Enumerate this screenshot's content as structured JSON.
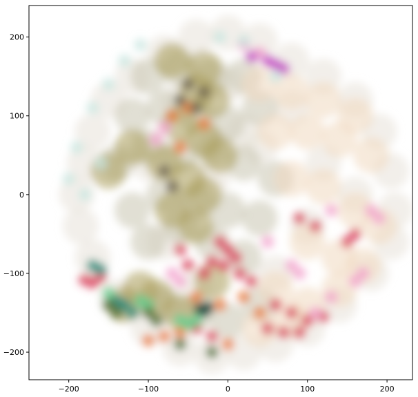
{
  "chart_data": {
    "type": "scatter",
    "title": "",
    "xlabel": "",
    "ylabel": "",
    "xlim": [
      -250,
      232
    ],
    "ylim": [
      -235,
      240
    ],
    "grid": false,
    "legend": "none",
    "x_ticks": [
      {
        "value": -200,
        "label": "−200"
      },
      {
        "value": -100,
        "label": "−100"
      },
      {
        "value": 0,
        "label": "0"
      },
      {
        "value": 100,
        "label": "100"
      },
      {
        "value": 200,
        "label": "200"
      }
    ],
    "y_ticks": [
      {
        "value": 200,
        "label": "200"
      },
      {
        "value": 100,
        "label": "100"
      },
      {
        "value": 0,
        "label": "0"
      },
      {
        "value": -100,
        "label": "−100"
      },
      {
        "value": -200,
        "label": "−200"
      }
    ],
    "series": [
      {
        "color": "#e8e2d8",
        "points": [
          [
            -80,
            180
          ],
          [
            -40,
            200
          ],
          [
            0,
            205
          ],
          [
            40,
            195
          ],
          [
            80,
            170
          ],
          [
            -120,
            150
          ],
          [
            -150,
            120
          ],
          [
            -170,
            80
          ],
          [
            -180,
            40
          ],
          [
            -190,
            0
          ],
          [
            -185,
            -40
          ],
          [
            -170,
            -80
          ],
          [
            -140,
            -130
          ],
          [
            -100,
            -170
          ],
          [
            -60,
            -195
          ],
          [
            -20,
            -205
          ],
          [
            20,
            -200
          ],
          [
            60,
            -190
          ],
          [
            100,
            -170
          ],
          [
            140,
            -140
          ],
          [
            180,
            -100
          ],
          [
            205,
            -60
          ],
          [
            210,
            -20
          ],
          [
            205,
            30
          ],
          [
            190,
            80
          ],
          [
            160,
            120
          ],
          [
            120,
            150
          ],
          [
            80,
            110
          ],
          [
            40,
            60
          ],
          [
            120,
            40
          ],
          [
            160,
            0
          ],
          [
            100,
            -40
          ],
          [
            60,
            -100
          ],
          [
            -40,
            -120
          ],
          [
            -80,
            -60
          ],
          [
            -100,
            40
          ],
          [
            -60,
            120
          ],
          [
            0,
            140
          ],
          [
            20,
            80
          ],
          [
            -20,
            20
          ]
        ]
      },
      {
        "color": "#c8c4b0",
        "points": [
          [
            -100,
            150
          ],
          [
            -60,
            160
          ],
          [
            -20,
            150
          ],
          [
            20,
            150
          ],
          [
            -120,
            100
          ],
          [
            -80,
            110
          ],
          [
            -40,
            100
          ],
          [
            0,
            90
          ],
          [
            40,
            110
          ],
          [
            -140,
            40
          ],
          [
            -100,
            60
          ],
          [
            -60,
            50
          ],
          [
            -20,
            60
          ],
          [
            20,
            40
          ],
          [
            60,
            20
          ],
          [
            -120,
            -20
          ],
          [
            -80,
            0
          ],
          [
            -40,
            -10
          ],
          [
            0,
            -20
          ],
          [
            40,
            -30
          ],
          [
            -100,
            -60
          ],
          [
            -60,
            -40
          ],
          [
            -20,
            -60
          ],
          [
            20,
            -80
          ],
          [
            -80,
            -140
          ],
          [
            -40,
            -150
          ],
          [
            0,
            -160
          ],
          [
            40,
            -140
          ]
        ]
      },
      {
        "color": "#a89a58",
        "points": [
          [
            -40,
            130
          ],
          [
            -20,
            120
          ],
          [
            -60,
            90
          ],
          [
            -30,
            70
          ],
          [
            -10,
            50
          ],
          [
            -80,
            40
          ],
          [
            -50,
            20
          ],
          [
            -30,
            0
          ],
          [
            -70,
            -20
          ],
          [
            -40,
            -40
          ],
          [
            -110,
            -120
          ],
          [
            -130,
            -140
          ],
          [
            -90,
            -130
          ],
          [
            -60,
            -150
          ],
          [
            -20,
            -110
          ],
          [
            -150,
            30
          ],
          [
            -120,
            60
          ],
          [
            -30,
            160
          ],
          [
            -70,
            170
          ]
        ]
      },
      {
        "color": "#f0d8c0",
        "points": [
          [
            40,
            140
          ],
          [
            80,
            130
          ],
          [
            120,
            120
          ],
          [
            160,
            100
          ],
          [
            60,
            80
          ],
          [
            100,
            80
          ],
          [
            140,
            70
          ],
          [
            180,
            50
          ],
          [
            80,
            20
          ],
          [
            120,
            10
          ],
          [
            160,
            -20
          ],
          [
            190,
            -40
          ],
          [
            100,
            -60
          ],
          [
            140,
            -80
          ],
          [
            170,
            -90
          ],
          [
            60,
            -120
          ],
          [
            100,
            -140
          ],
          [
            140,
            -120
          ],
          [
            40,
            -170
          ],
          [
            80,
            -160
          ]
        ]
      },
      {
        "color": "#d8405a",
        "points": [
          [
            -10,
            -60
          ],
          [
            0,
            -70
          ],
          [
            10,
            -80
          ],
          [
            -20,
            -85
          ],
          [
            -5,
            -90
          ],
          [
            15,
            -100
          ],
          [
            -30,
            -100
          ],
          [
            30,
            -110
          ],
          [
            60,
            -140
          ],
          [
            80,
            -150
          ],
          [
            100,
            -160
          ],
          [
            120,
            -155
          ],
          [
            -180,
            -108
          ],
          [
            -170,
            -112
          ],
          [
            -160,
            -105
          ],
          [
            50,
            -170
          ],
          [
            70,
            -175
          ],
          [
            90,
            -175
          ],
          [
            -40,
            -170
          ],
          [
            -20,
            -180
          ],
          [
            150,
            -60
          ],
          [
            160,
            -50
          ],
          [
            110,
            -40
          ],
          [
            90,
            -30
          ],
          [
            -50,
            -90
          ],
          [
            -60,
            -70
          ]
        ]
      },
      {
        "color": "#f2a0cc",
        "points": [
          [
            -90,
            70
          ],
          [
            -80,
            85
          ],
          [
            20,
            190
          ],
          [
            40,
            180
          ],
          [
            160,
            -110
          ],
          [
            170,
            -100
          ],
          [
            190,
            -30
          ],
          [
            180,
            -20
          ],
          [
            130,
            -130
          ],
          [
            110,
            -150
          ],
          [
            90,
            -100
          ],
          [
            80,
            -90
          ],
          [
            50,
            -60
          ],
          [
            130,
            -20
          ],
          [
            -70,
            -100
          ],
          [
            -60,
            -110
          ]
        ]
      },
      {
        "color": "#c040c0",
        "points": [
          [
            50,
            170
          ],
          [
            60,
            165
          ],
          [
            30,
            175
          ],
          [
            70,
            160
          ]
        ]
      },
      {
        "color": "#e87838",
        "points": [
          [
            -70,
            100
          ],
          [
            -50,
            110
          ],
          [
            -30,
            90
          ],
          [
            -60,
            60
          ],
          [
            -40,
            -130
          ],
          [
            -80,
            -180
          ],
          [
            -60,
            -175
          ],
          [
            -100,
            -185
          ],
          [
            20,
            -130
          ],
          [
            40,
            -150
          ],
          [
            -10,
            -140
          ],
          [
            0,
            -190
          ]
        ]
      },
      {
        "color": "#c8e6e0",
        "points": [
          [
            -170,
            110
          ],
          [
            -150,
            140
          ],
          [
            -130,
            170
          ],
          [
            -110,
            190
          ],
          [
            -190,
            60
          ],
          [
            -200,
            20
          ],
          [
            -180,
            0
          ],
          [
            -160,
            40
          ],
          [
            60,
            150
          ],
          [
            20,
            195
          ],
          [
            -10,
            200
          ]
        ]
      },
      {
        "color": "#208878",
        "points": [
          [
            -170,
            -90
          ],
          [
            -160,
            -95
          ],
          [
            -130,
            -140
          ],
          [
            -120,
            -150
          ],
          [
            -140,
            -135
          ]
        ]
      },
      {
        "color": "#1a4a40",
        "points": [
          [
            -35,
            -145
          ],
          [
            -30,
            -148
          ],
          [
            -25,
            -143
          ]
        ]
      },
      {
        "color": "#60d090",
        "points": [
          [
            -60,
            -160
          ],
          [
            -50,
            -165
          ],
          [
            -40,
            -160
          ],
          [
            -110,
            -135
          ],
          [
            -100,
            -140
          ],
          [
            -150,
            -125
          ]
        ]
      },
      {
        "color": "#4a6a2a",
        "points": [
          [
            -100,
            -150
          ],
          [
            -90,
            -160
          ],
          [
            -150,
            -140
          ],
          [
            -140,
            -150
          ],
          [
            -20,
            -200
          ],
          [
            -60,
            -190
          ]
        ]
      },
      {
        "color": "#6a6050",
        "points": [
          [
            -50,
            140
          ],
          [
            -30,
            130
          ],
          [
            -60,
            120
          ],
          [
            -40,
            110
          ],
          [
            -80,
            30
          ],
          [
            -70,
            10
          ]
        ]
      }
    ]
  }
}
